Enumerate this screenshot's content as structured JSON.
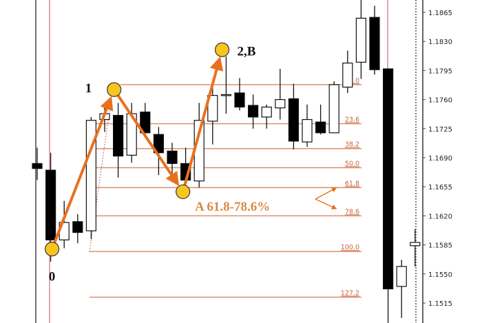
{
  "chart_data": {
    "type": "candlestick",
    "title": "",
    "xlabel": "",
    "ylabel": "",
    "ylim": [
      1.1491,
      1.188
    ],
    "y_ticks": [
      "1.1865",
      "1.1830",
      "1.1795",
      "1.1760",
      "1.1725",
      "1.1690",
      "1.1655",
      "1.1620",
      "1.1585",
      "1.1550",
      "1.1515"
    ],
    "grid": false,
    "candles": [
      {
        "o": 1.1683,
        "h": 1.1702,
        "l": 1.1663,
        "c": 1.1677
      },
      {
        "o": 1.1675,
        "h": 1.1696,
        "l": 1.1565,
        "c": 1.1591
      },
      {
        "o": 1.1591,
        "h": 1.1638,
        "l": 1.1581,
        "c": 1.1612
      },
      {
        "o": 1.1613,
        "h": 1.1622,
        "l": 1.1587,
        "c": 1.16
      },
      {
        "o": 1.1602,
        "h": 1.1739,
        "l": 1.1592,
        "c": 1.1735
      },
      {
        "o": 1.1736,
        "h": 1.1751,
        "l": 1.1721,
        "c": 1.1743
      },
      {
        "o": 1.1741,
        "h": 1.1756,
        "l": 1.1666,
        "c": 1.1692
      },
      {
        "o": 1.1693,
        "h": 1.1756,
        "l": 1.1684,
        "c": 1.1743
      },
      {
        "o": 1.1745,
        "h": 1.1756,
        "l": 1.1714,
        "c": 1.172
      },
      {
        "o": 1.1718,
        "h": 1.1727,
        "l": 1.1669,
        "c": 1.1696
      },
      {
        "o": 1.1698,
        "h": 1.1708,
        "l": 1.1663,
        "c": 1.1683
      },
      {
        "o": 1.1683,
        "h": 1.1702,
        "l": 1.1656,
        "c": 1.1663
      },
      {
        "o": 1.1662,
        "h": 1.1756,
        "l": 1.1654,
        "c": 1.1735
      },
      {
        "o": 1.1734,
        "h": 1.1774,
        "l": 1.1706,
        "c": 1.1765
      },
      {
        "o": 1.1766,
        "h": 1.1812,
        "l": 1.1743,
        "c": 1.1766
      },
      {
        "o": 1.1768,
        "h": 1.1786,
        "l": 1.1747,
        "c": 1.1751
      },
      {
        "o": 1.1753,
        "h": 1.1766,
        "l": 1.1725,
        "c": 1.1739
      },
      {
        "o": 1.1739,
        "h": 1.1754,
        "l": 1.1725,
        "c": 1.1751
      },
      {
        "o": 1.175,
        "h": 1.1797,
        "l": 1.1736,
        "c": 1.176
      },
      {
        "o": 1.1761,
        "h": 1.1779,
        "l": 1.17,
        "c": 1.171
      },
      {
        "o": 1.1709,
        "h": 1.1754,
        "l": 1.1703,
        "c": 1.1736
      },
      {
        "o": 1.1733,
        "h": 1.1754,
        "l": 1.1718,
        "c": 1.172
      },
      {
        "o": 1.172,
        "h": 1.1782,
        "l": 1.172,
        "c": 1.1778
      },
      {
        "o": 1.1775,
        "h": 1.1819,
        "l": 1.1768,
        "c": 1.1804
      },
      {
        "o": 1.1805,
        "h": 1.188,
        "l": 1.1785,
        "c": 1.1858
      },
      {
        "o": 1.1859,
        "h": 1.1873,
        "l": 1.179,
        "c": 1.1796
      },
      {
        "o": 1.1797,
        "h": 1.1797,
        "l": 1.1491,
        "c": 1.1532
      },
      {
        "o": 1.1535,
        "h": 1.1567,
        "l": 1.1497,
        "c": 1.1559
      },
      {
        "o": 1.1584,
        "h": 1.1604,
        "l": 1.1559,
        "c": 1.1588
      }
    ],
    "fibonacci_levels": [
      {
        "label": "0.0",
        "price": 1.1778
      },
      {
        "label": "23.6",
        "price": 1.1731
      },
      {
        "label": "38.2",
        "price": 1.1701
      },
      {
        "label": "50.0",
        "price": 1.1678
      },
      {
        "label": "61.8",
        "price": 1.1654
      },
      {
        "label": "78.6",
        "price": 1.162
      },
      {
        "label": "100.0",
        "price": 1.1577
      },
      {
        "label": "127.2",
        "price": 1.1522
      }
    ],
    "pattern_points": [
      {
        "label": "0",
        "bar": 1.1,
        "price": 1.158
      },
      {
        "label": "1",
        "bar": 5.7,
        "price": 1.1772
      },
      {
        "label": "A",
        "bar": 10.8,
        "price": 1.1649
      },
      {
        "label": "2,B",
        "bar": 13.7,
        "price": 1.182
      }
    ],
    "annotation": "A 61.8-78.6%",
    "colors": {
      "fib_line": "#d9906c",
      "fib_text": "#c8643a",
      "zigzag": "#e8711e",
      "point_fill": "#f7c51e",
      "annotation": "#d98a45",
      "bear": "#000000",
      "bull": "#ffffff",
      "vline": "#c0505a"
    }
  }
}
